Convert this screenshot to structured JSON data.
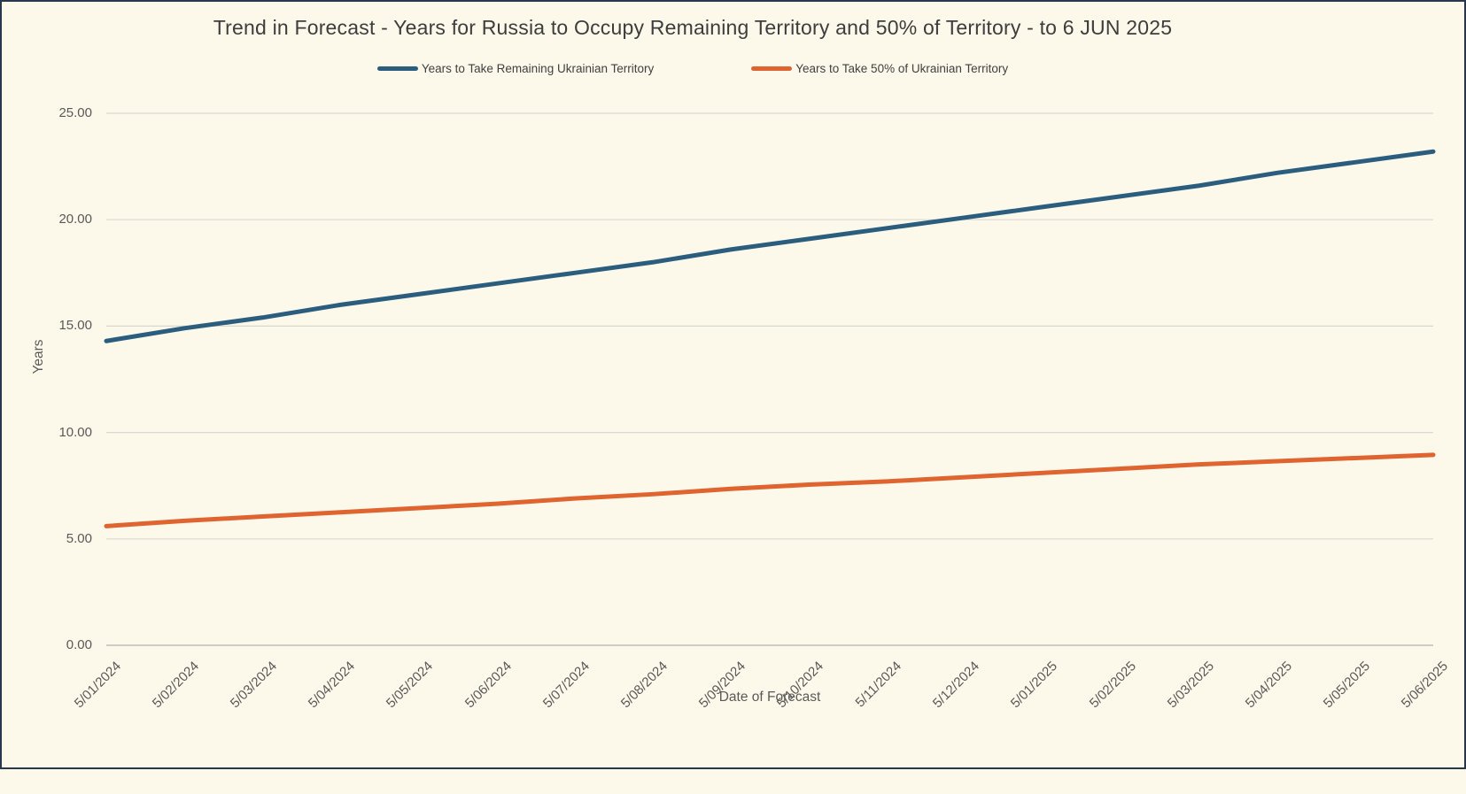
{
  "chart": {
    "title": "Trend in Forecast - Years for Russia to Occupy Remaining Territory and 50% of Territory - to 6 JUN 2025"
  },
  "chart_data": {
    "type": "line",
    "title": "Trend in Forecast - Years for Russia to Occupy Remaining Territory and 50% of Territory - to 6 JUN 2025",
    "xlabel": "Date of Forecast",
    "ylabel": "Years",
    "categories": [
      "5/01/2024",
      "5/02/2024",
      "5/03/2024",
      "5/04/2024",
      "5/05/2024",
      "5/06/2024",
      "5/07/2024",
      "5/08/2024",
      "5/09/2024",
      "5/10/2024",
      "5/11/2024",
      "5/12/2024",
      "5/01/2025",
      "5/02/2025",
      "5/03/2025",
      "5/04/2025",
      "5/05/2025",
      "5/06/2025"
    ],
    "y_tick_labels": [
      "0.00",
      "5.00",
      "10.00",
      "15.00",
      "20.00",
      "25.00"
    ],
    "ylim": [
      0,
      25
    ],
    "grid": true,
    "legend_position": "top",
    "series": [
      {
        "name": "Years to Take Remaining Ukrainian Territory",
        "color": "#2b5d7e",
        "values": [
          14.3,
          14.9,
          15.4,
          16.0,
          16.5,
          17.0,
          17.5,
          18.0,
          18.6,
          19.1,
          19.6,
          20.1,
          20.6,
          21.1,
          21.6,
          22.2,
          22.7,
          23.2
        ]
      },
      {
        "name": "Years to Take  50% of Ukrainian Territory",
        "color": "#e0642f",
        "values": [
          5.6,
          5.85,
          6.05,
          6.25,
          6.45,
          6.65,
          6.9,
          7.1,
          7.35,
          7.55,
          7.7,
          7.9,
          8.1,
          8.3,
          8.5,
          8.65,
          8.8,
          8.95
        ]
      }
    ],
    "colors": {
      "background": "#fdf9ea",
      "gridline": "#d9d7d1",
      "axis_line": "#bfbdb7",
      "border": "#26374e",
      "tick_text": "#595959",
      "title_text": "#3d3d3d"
    }
  }
}
